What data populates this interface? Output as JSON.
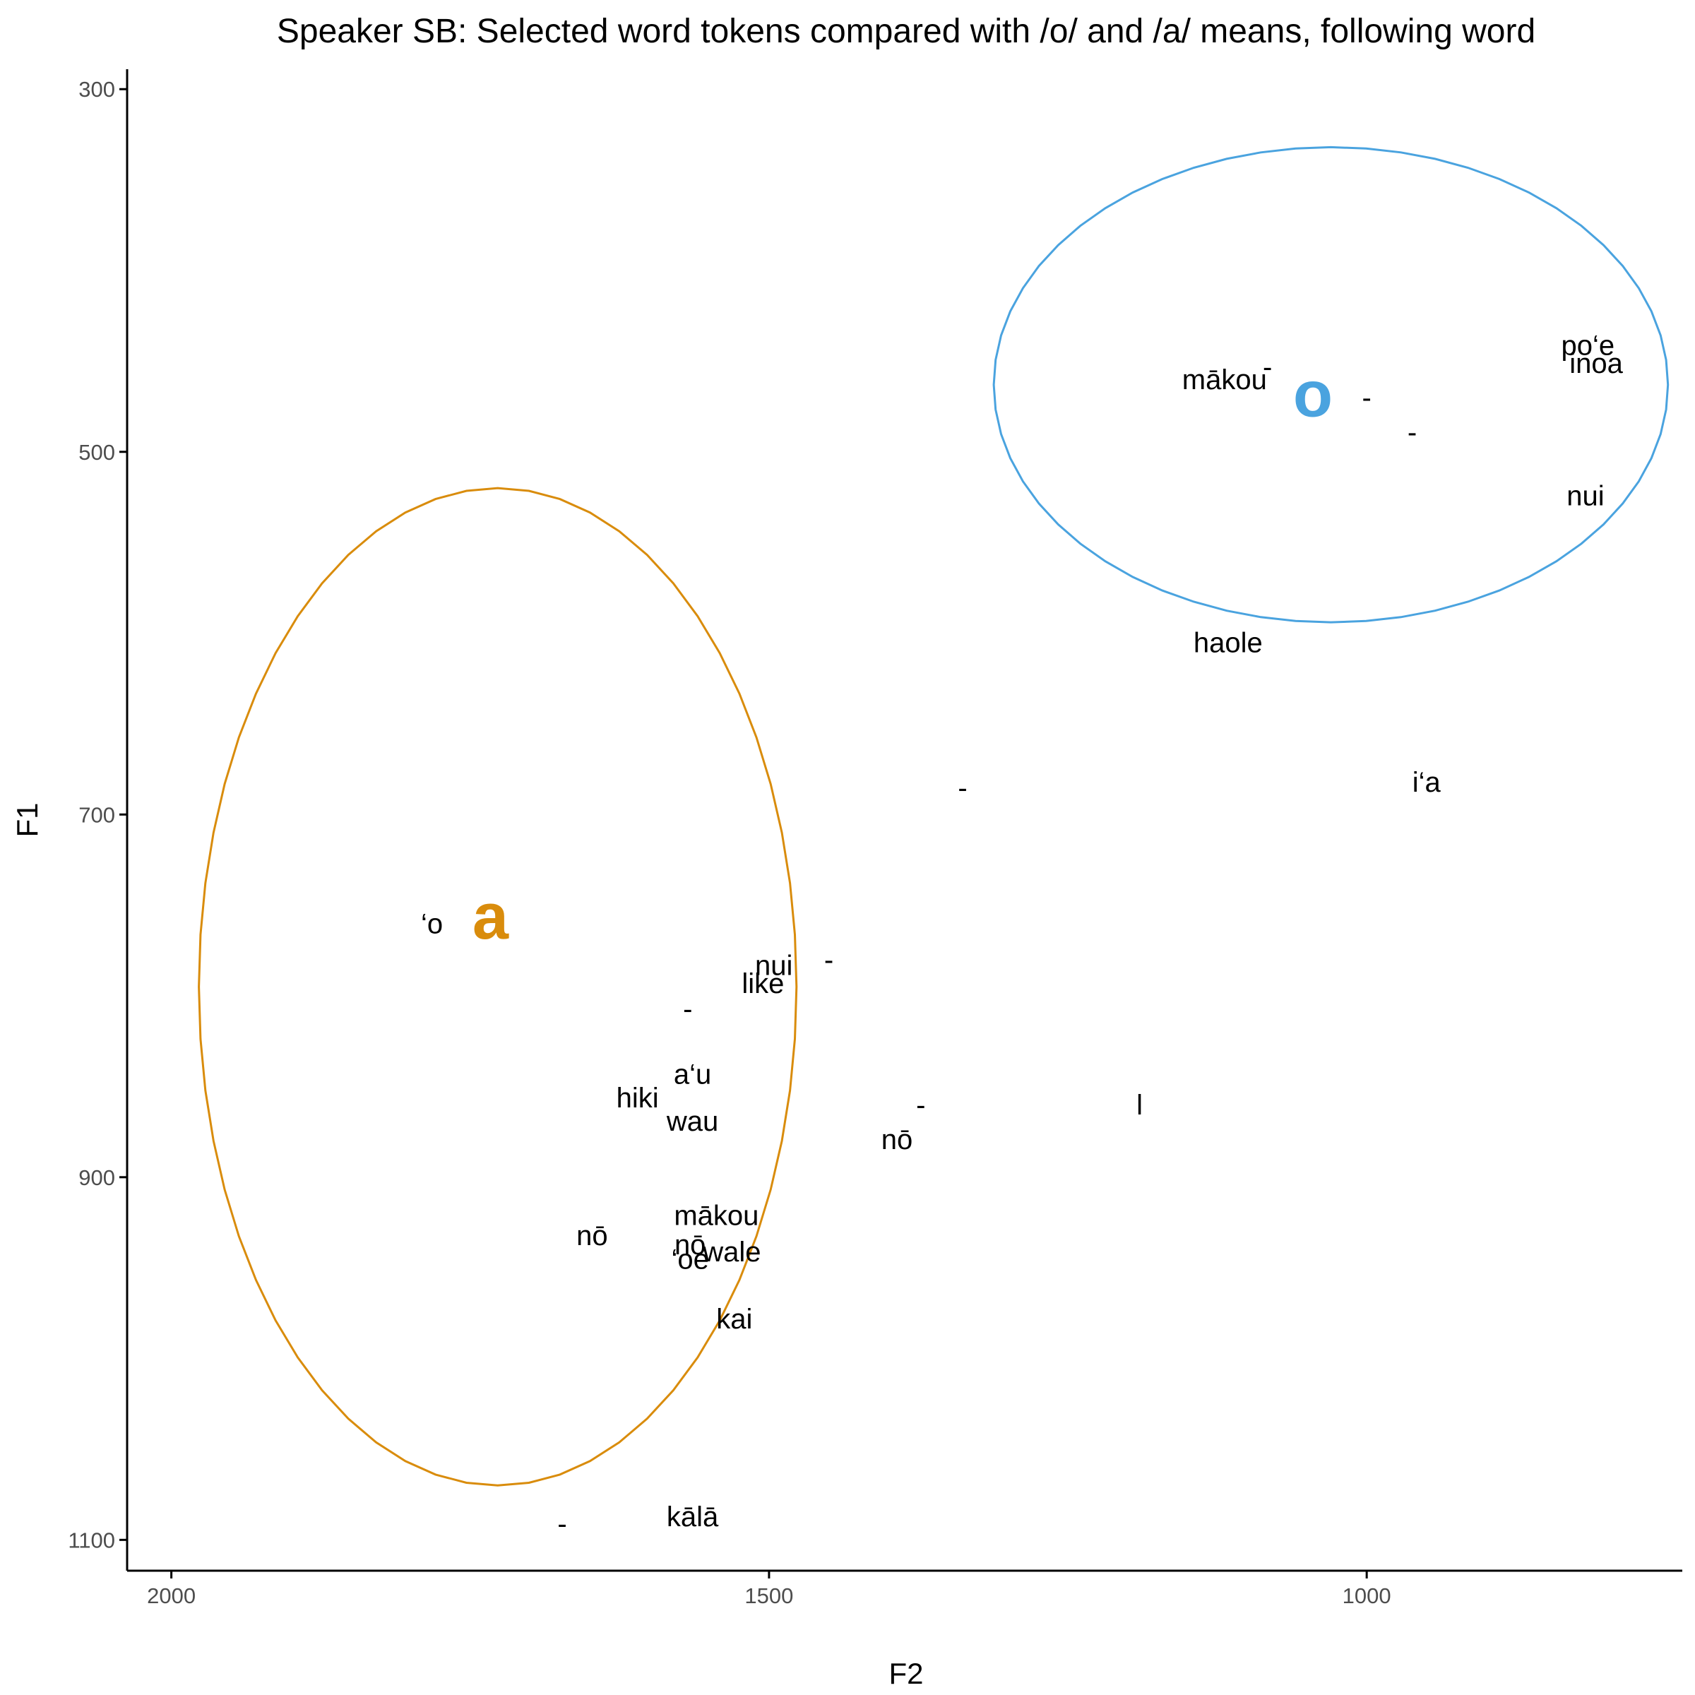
{
  "chart_data": {
    "type": "scatter",
    "title": "Speaker SB: Selected word tokens compared with /o/ and /a/ means, following word",
    "xlabel": "F2",
    "ylabel": "F1",
    "x_reversed": true,
    "y_reversed": true,
    "xlim": [
      2037,
      736
    ],
    "ylim": [
      289,
      1117
    ],
    "x_ticks": [
      2000,
      1500,
      1000
    ],
    "y_ticks": [
      300,
      500,
      700,
      900,
      1100
    ],
    "grid": false,
    "legend": "none",
    "means": [
      {
        "label": "o",
        "x": 1045,
        "y": 468,
        "color": "#4aa3df"
      },
      {
        "label": "a",
        "x": 1733,
        "y": 756,
        "color": "#d98c0c"
      }
    ],
    "ellipses": [
      {
        "vowel": "o",
        "color": "#4aa3df",
        "cx": 1030,
        "cy": 463,
        "rx": 282,
        "ry": 131
      },
      {
        "vowel": "a",
        "color": "#d98c0c",
        "cx": 1727,
        "cy": 795,
        "rx": 250,
        "ry": 275
      }
    ],
    "tokens": [
      {
        "label": "mākou",
        "x": 1119,
        "y": 460
      },
      {
        "label": "-",
        "x": 1083,
        "y": 453
      },
      {
        "label": "-",
        "x": 1000,
        "y": 470
      },
      {
        "label": "-",
        "x": 962,
        "y": 489
      },
      {
        "label": "po‘e",
        "x": 815,
        "y": 441
      },
      {
        "label": "inoa",
        "x": 808,
        "y": 451
      },
      {
        "label": "nui",
        "x": 817,
        "y": 524
      },
      {
        "label": "haole",
        "x": 1116,
        "y": 605
      },
      {
        "label": "i‘a",
        "x": 950,
        "y": 682
      },
      {
        "label": "-",
        "x": 1338,
        "y": 685
      },
      {
        "label": "‘o",
        "x": 1782,
        "y": 760
      },
      {
        "label": "nui",
        "x": 1496,
        "y": 783
      },
      {
        "label": "-",
        "x": 1450,
        "y": 780
      },
      {
        "label": "like",
        "x": 1505,
        "y": 793
      },
      {
        "label": "-",
        "x": 1568,
        "y": 807
      },
      {
        "label": "a‘u",
        "x": 1564,
        "y": 843
      },
      {
        "label": "hiki",
        "x": 1610,
        "y": 856
      },
      {
        "label": "wau",
        "x": 1564,
        "y": 869
      },
      {
        "label": "-",
        "x": 1373,
        "y": 860
      },
      {
        "label": "l",
        "x": 1190,
        "y": 860
      },
      {
        "label": "nō",
        "x": 1393,
        "y": 879
      },
      {
        "label": "nō",
        "x": 1648,
        "y": 932
      },
      {
        "label": "mākou",
        "x": 1544,
        "y": 921
      },
      {
        "label": "nō",
        "x": 1566,
        "y": 937
      },
      {
        "label": "‘oe",
        "x": 1566,
        "y": 945
      },
      {
        "label": "wale",
        "x": 1531,
        "y": 941
      },
      {
        "label": "kai",
        "x": 1529,
        "y": 978
      },
      {
        "label": "-",
        "x": 1673,
        "y": 1091
      },
      {
        "label": "kālā",
        "x": 1564,
        "y": 1087
      }
    ]
  }
}
